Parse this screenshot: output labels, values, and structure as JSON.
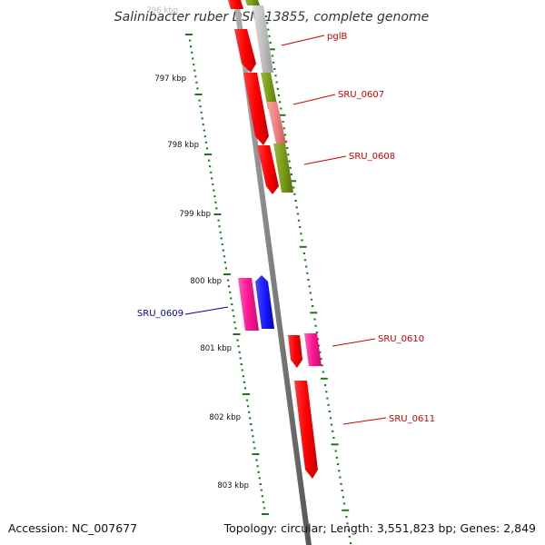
{
  "title": "Salinibacter ruber DSM 13855, complete genome",
  "footer": {
    "accession": "Accession: NC_007677",
    "summary": "Topology: circular; Length: 3,551,823 bp; Genes: 2,849"
  },
  "colors": {
    "forward_cds": "#ff0000",
    "reverse_cds": "#ff0000",
    "rna_pink": "#ff1493",
    "blue_feature": "#1a1aff",
    "gray_feature": "#c0c0c0",
    "olive_feature": "#7a9a1a",
    "salmon_feature": "#f08080",
    "backbone": "#888888",
    "tick_dots": "#1a7a1a",
    "label_red": "#cc0000",
    "label_blue": "#0000aa"
  },
  "ticks": [
    "796 kbp",
    "797 kbp",
    "798 kbp",
    "799 kbp",
    "800 kbp",
    "801 kbp",
    "802 kbp",
    "803 kbp"
  ],
  "gene_labels": [
    {
      "name": "pglB",
      "color": "label_red"
    },
    {
      "name": "SRU_0607",
      "color": "label_red"
    },
    {
      "name": "SRU_0608",
      "color": "label_red"
    },
    {
      "name": "SRU_0609",
      "color": "label_blue"
    },
    {
      "name": "SRU_0610",
      "color": "label_red"
    },
    {
      "name": "SRU_0611",
      "color": "label_red"
    }
  ]
}
